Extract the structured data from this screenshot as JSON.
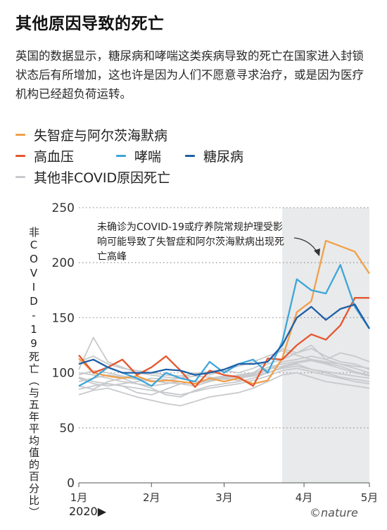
{
  "title": "其他原因导致的死亡",
  "description": "英国的数据显示，糖尿病和哮喘这类疾病导致的死亡在国家进入封锁状态后有所增加，这也许是因为人们不愿意寻求治疗，或是因为医疗机构已经超负荷运转。",
  "legend": [
    {
      "label": "失智症与阿尔茨海默病",
      "color": "#f0a04b"
    },
    {
      "label": "高血压",
      "color": "#e4572e"
    },
    {
      "label": "哮喘",
      "color": "#3da5d9"
    },
    {
      "label": "糖尿病",
      "color": "#1f5fa6"
    },
    {
      "label": "其他非COVID原因死亡",
      "color": "#c7c9cc"
    }
  ],
  "annotation": "未确诊为COVID-19或疗养院常规护理受影响可能导致了失智症和阿尔茨海默病出现死亡高峰",
  "year_label": "2020▶",
  "credit": "©nature",
  "chart_data": {
    "type": "line",
    "ylabel": "非COVID-19死亡（与五年平均值的百分比）",
    "ylim": [
      0,
      250
    ],
    "yticks": [
      0,
      50,
      100,
      150,
      200,
      250
    ],
    "xlim": [
      0,
      20
    ],
    "x_ticks": [
      {
        "x": 0,
        "label": "1月"
      },
      {
        "x": 5,
        "label": "2月"
      },
      {
        "x": 10,
        "label": "3月"
      },
      {
        "x": 15.5,
        "label": "4月"
      },
      {
        "x": 20,
        "label": "5月"
      }
    ],
    "shaded_from_x": 14,
    "grid": true,
    "x": [
      0,
      1,
      2,
      3,
      4,
      5,
      6,
      7,
      8,
      9,
      10,
      11,
      12,
      13,
      14,
      15,
      16,
      17,
      18,
      19,
      20
    ],
    "series": [
      {
        "name": "失智症与阿尔茨海默病",
        "color": "#f0a04b",
        "values": [
          113,
          100,
          97,
          95,
          97,
          92,
          93,
          92,
          90,
          95,
          92,
          95,
          90,
          93,
          113,
          155,
          165,
          220,
          215,
          210,
          190
        ]
      },
      {
        "name": "高血压",
        "color": "#e4572e",
        "values": [
          116,
          100,
          105,
          112,
          98,
          105,
          115,
          102,
          87,
          102,
          98,
          96,
          88,
          113,
          112,
          125,
          135,
          130,
          143,
          168,
          168
        ]
      },
      {
        "name": "哮喘",
        "color": "#3da5d9",
        "values": [
          88,
          95,
          105,
          100,
          95,
          88,
          100,
          95,
          92,
          110,
          100,
          108,
          112,
          100,
          128,
          185,
          175,
          172,
          198,
          160,
          140
        ]
      },
      {
        "name": "糖尿病",
        "color": "#1f5fa6",
        "values": [
          108,
          112,
          105,
          100,
          100,
          100,
          103,
          102,
          98,
          100,
          103,
          108,
          108,
          110,
          125,
          150,
          160,
          148,
          158,
          162,
          140
        ]
      },
      {
        "name": "其他非COVID原因死亡",
        "color": "#c7c9cc",
        "group": true,
        "values": [
          96,
          92,
          90,
          88,
          82,
          80,
          85,
          90,
          88,
          92,
          95,
          93,
          100,
          108,
          112,
          118,
          122,
          115,
          110,
          108,
          103
        ]
      },
      {
        "name": "其他非COVID原因死亡",
        "color": "#c7c9cc",
        "group": true,
        "values": [
          100,
          98,
          95,
          92,
          90,
          88,
          90,
          92,
          90,
          95,
          97,
          96,
          98,
          102,
          110,
          112,
          115,
          112,
          108,
          104,
          100
        ]
      },
      {
        "name": "其他非COVID原因死亡",
        "color": "#c7c9cc",
        "group": true,
        "values": [
          88,
          85,
          92,
          95,
          90,
          86,
          80,
          78,
          84,
          88,
          90,
          92,
          95,
          100,
          105,
          108,
          103,
          100,
          96,
          94,
          92
        ]
      },
      {
        "name": "其他非COVID原因死亡",
        "color": "#c7c9cc",
        "group": true,
        "values": [
          103,
          132,
          110,
          105,
          100,
          98,
          96,
          95,
          100,
          98,
          102,
          100,
          104,
          110,
          122,
          118,
          125,
          112,
          118,
          115,
          110
        ]
      },
      {
        "name": "其他非COVID原因死亡",
        "color": "#c7c9cc",
        "group": true,
        "values": [
          92,
          95,
          98,
          96,
          94,
          92,
          93,
          95,
          97,
          96,
          94,
          95,
          97,
          100,
          104,
          106,
          103,
          101,
          99,
          97,
          95
        ]
      },
      {
        "name": "其他非COVID原因死亡",
        "color": "#c7c9cc",
        "group": true,
        "values": [
          80,
          84,
          86,
          82,
          78,
          75,
          72,
          70,
          74,
          78,
          80,
          82,
          86,
          92,
          98,
          100,
          96,
          92,
          90,
          88,
          86
        ]
      },
      {
        "name": "其他非COVID原因死亡",
        "color": "#c7c9cc",
        "group": true,
        "values": [
          110,
          115,
          108,
          104,
          102,
          100,
          98,
          97,
          99,
          101,
          103,
          106,
          110,
          115,
          120,
          116,
          112,
          110,
          108,
          106,
          104
        ]
      },
      {
        "name": "其他非COVID原因死亡",
        "color": "#c7c9cc",
        "group": true,
        "values": [
          95,
          90,
          88,
          90,
          92,
          95,
          94,
          92,
          90,
          93,
          95,
          97,
          99,
          105,
          108,
          110,
          112,
          109,
          106,
          101,
          98
        ]
      },
      {
        "name": "其他非COVID原因死亡",
        "color": "#c7c9cc",
        "group": true,
        "values": [
          98,
          102,
          100,
          97,
          95,
          93,
          91,
          90,
          92,
          94,
          96,
          98,
          100,
          103,
          106,
          109,
          111,
          108,
          104,
          100,
          97
        ]
      },
      {
        "name": "其他非COVID原因死亡",
        "color": "#c7c9cc",
        "group": true,
        "values": [
          85,
          88,
          90,
          88,
          86,
          84,
          82,
          80,
          83,
          86,
          88,
          90,
          93,
          97,
          102,
          104,
          101,
          98,
          95,
          92,
          90
        ]
      }
    ]
  }
}
